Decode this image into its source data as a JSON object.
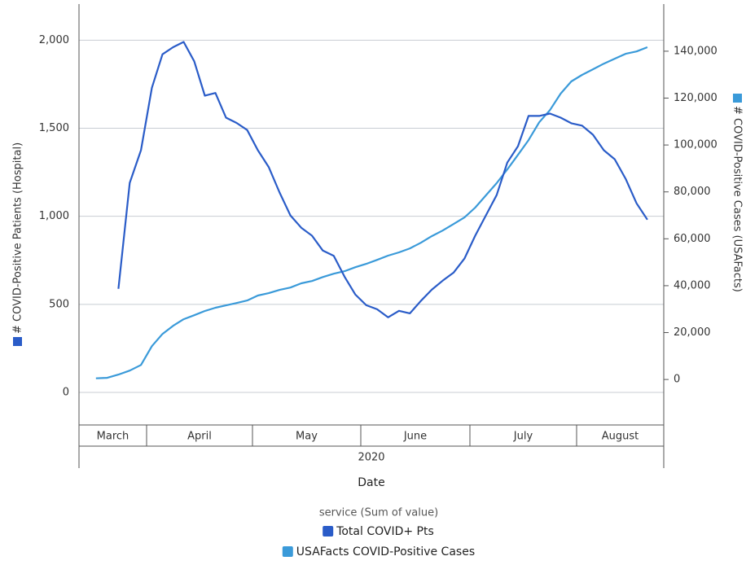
{
  "chart_data": {
    "type": "line",
    "y_label": "# COVID-Positive Patients (Hospital)",
    "y2_label": "# COVID-Positive Cases (USAFacts)",
    "x_label": "Date",
    "year": "2020",
    "categories": [
      "March",
      "April",
      "May",
      "June",
      "July",
      "August"
    ],
    "x": [
      "March",
      "March",
      "March",
      "March",
      "March",
      "March",
      "April",
      "April",
      "April",
      "April",
      "April",
      "April",
      "April",
      "April",
      "April",
      "April",
      "May",
      "May",
      "May",
      "May",
      "May",
      "May",
      "May",
      "May",
      "May",
      "May",
      "June",
      "June",
      "June",
      "June",
      "June",
      "June",
      "June",
      "June",
      "June",
      "June",
      "July",
      "July",
      "July",
      "July",
      "July",
      "July",
      "July",
      "July",
      "July",
      "July",
      "August",
      "August",
      "August",
      "August",
      "August",
      "August",
      "August",
      "August"
    ],
    "series": [
      {
        "name": "Total COVID+ Pts",
        "color": "#2a5cc8",
        "axis": "y",
        "values": [
          null,
          null,
          null,
          588,
          1190,
          1375,
          1730,
          1920,
          1960,
          1990,
          1880,
          1685,
          1700,
          1560,
          1530,
          1490,
          1375,
          1280,
          1135,
          1005,
          935,
          890,
          805,
          775,
          657,
          555,
          495,
          472,
          426,
          463,
          449,
          519,
          583,
          634,
          680,
          760,
          890,
          1005,
          1120,
          1305,
          1398,
          1570,
          1570,
          1583,
          1560,
          1528,
          1515,
          1463,
          1375,
          1324,
          1213,
          1074,
          981,
          null
        ]
      },
      {
        "name": "USAFacts COVID-Positive Cases",
        "color": "#3a9ad9",
        "axis": "y2",
        "values": [
          null,
          500,
          700,
          2100,
          3800,
          6200,
          14200,
          19400,
          22900,
          25700,
          27400,
          29200,
          30600,
          31600,
          32600,
          33700,
          35800,
          36800,
          38200,
          39200,
          41000,
          42000,
          43700,
          45100,
          46200,
          47900,
          49300,
          51000,
          52800,
          54200,
          55900,
          58300,
          61100,
          63500,
          66300,
          69100,
          73300,
          78500,
          83700,
          89600,
          95800,
          102100,
          109700,
          114900,
          121900,
          127100,
          129900,
          132300,
          134700,
          136800,
          138900,
          139900,
          141700,
          null
        ]
      }
    ],
    "ylim": [
      -185,
      2205
    ],
    "yticks": [
      0,
      500,
      {
        "value": 1000,
        "label": "1,000"
      },
      {
        "value": 1500,
        "label": "1,500"
      },
      {
        "value": 2000,
        "label": "2,000"
      }
    ],
    "y2lim": [
      -19400,
      160100
    ],
    "y2ticks": [
      0,
      {
        "value": 20000,
        "label": "20,000"
      },
      {
        "value": 40000,
        "label": "40,000"
      },
      {
        "value": 60000,
        "label": "60,000"
      },
      {
        "value": 80000,
        "label": "80,000"
      },
      {
        "value": 100000,
        "label": "100,000"
      },
      {
        "value": 120000,
        "label": "120,000"
      },
      {
        "value": 140000,
        "label": "140,000"
      }
    ],
    "grid": true,
    "legend_title": "service (Sum of value)",
    "legend_position": "bottom"
  }
}
